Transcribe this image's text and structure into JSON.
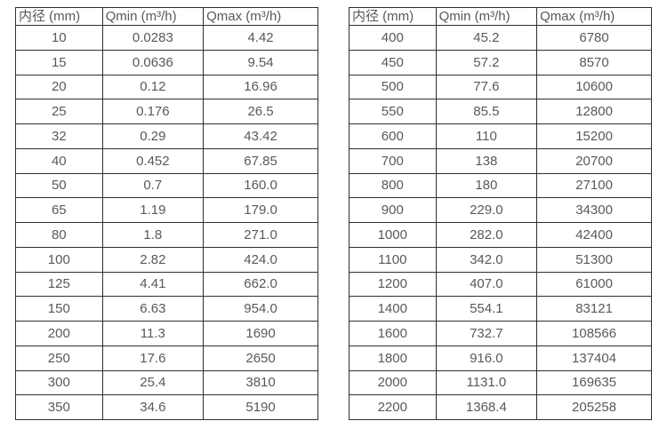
{
  "tables": [
    {
      "name": "flow-rate-table-small-diameters",
      "headers": [
        "内径 (mm)",
        "Qmin (m³/h)",
        "Qmax (m³/h)"
      ],
      "col_widths": [
        "28.7%",
        "33.4%",
        "37.9%"
      ],
      "rows": [
        [
          "10",
          "0.0283",
          "4.42"
        ],
        [
          "15",
          "0.0636",
          "9.54"
        ],
        [
          "20",
          "0.12",
          "16.96"
        ],
        [
          "25",
          "0.176",
          "26.5"
        ],
        [
          "32",
          "0.29",
          "43.42"
        ],
        [
          "40",
          "0.452",
          "67.85"
        ],
        [
          "50",
          "0.7",
          "160.0"
        ],
        [
          "65",
          "1.19",
          "179.0"
        ],
        [
          "80",
          "1.8",
          "271.0"
        ],
        [
          "100",
          "2.82",
          "424.0"
        ],
        [
          "125",
          "4.41",
          "662.0"
        ],
        [
          "150",
          "6.63",
          "954.0"
        ],
        [
          "200",
          "11.3",
          "1690"
        ],
        [
          "250",
          "17.6",
          "2650"
        ],
        [
          "300",
          "25.4",
          "3810"
        ],
        [
          "350",
          "34.6",
          "5190"
        ]
      ]
    },
    {
      "name": "flow-rate-table-large-diameters",
      "headers": [
        "内径 (mm)",
        "Qmin (m³/h)",
        "Qmax (m³/h)"
      ],
      "col_widths": [
        "28.7%",
        "33.4%",
        "37.9%"
      ],
      "rows": [
        [
          "400",
          "45.2",
          "6780"
        ],
        [
          "450",
          "57.2",
          "8570"
        ],
        [
          "500",
          "77.6",
          "10600"
        ],
        [
          "550",
          "85.5",
          "12800"
        ],
        [
          "600",
          "110",
          "15200"
        ],
        [
          "700",
          "138",
          "20700"
        ],
        [
          "800",
          "180",
          "27100"
        ],
        [
          "900",
          "229.0",
          "34300"
        ],
        [
          "1000",
          "282.0",
          "42400"
        ],
        [
          "1100",
          "342.0",
          "51300"
        ],
        [
          "1200",
          "407.0",
          "61000"
        ],
        [
          "1400",
          "554.1",
          "83121"
        ],
        [
          "1600",
          "732.7",
          "108566"
        ],
        [
          "1800",
          "916.0",
          "137404"
        ],
        [
          "2000",
          "1131.0",
          "169635"
        ],
        [
          "2200",
          "1368.4",
          "205258"
        ]
      ]
    }
  ],
  "colors": {
    "border": "#2f2f2f",
    "text": "#58595b",
    "background": "#ffffff"
  }
}
